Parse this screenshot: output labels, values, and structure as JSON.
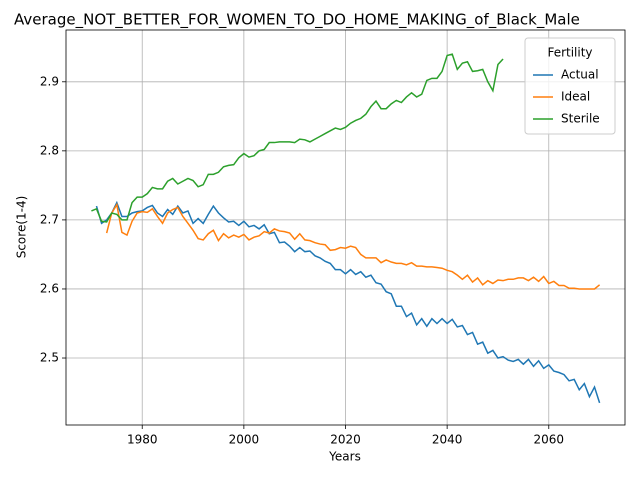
{
  "chart_data": {
    "type": "line",
    "title": "Average_NOT_BETTER_FOR_WOMEN_TO_DO_HOME_MAKING_of_Black_Male",
    "x_label": "Years",
    "y_label": "Score(1-4)",
    "legend_title": "Fertility",
    "legend_position": "upper right",
    "grid": true,
    "xlim": [
      1965,
      2075
    ],
    "ylim": [
      2.403,
      2.975
    ],
    "xticks": [
      1980,
      2000,
      2020,
      2040,
      2060
    ],
    "yticks": [
      2.5,
      2.6,
      2.7,
      2.8,
      2.9
    ],
    "x": [
      1970,
      1971,
      1972,
      1973,
      1974,
      1975,
      1976,
      1977,
      1978,
      1979,
      1980,
      1981,
      1982,
      1983,
      1984,
      1985,
      1986,
      1987,
      1988,
      1989,
      1990,
      1991,
      1992,
      1993,
      1994,
      1995,
      1996,
      1997,
      1998,
      1999,
      2000,
      2001,
      2002,
      2003,
      2004,
      2005,
      2006,
      2007,
      2008,
      2009,
      2010,
      2011,
      2012,
      2013,
      2014,
      2015,
      2016,
      2017,
      2018,
      2019,
      2020,
      2021,
      2022,
      2023,
      2024,
      2025,
      2026,
      2027,
      2028,
      2029,
      2030,
      2031,
      2032,
      2033,
      2034,
      2035,
      2036,
      2037,
      2038,
      2039,
      2040,
      2041,
      2042,
      2043,
      2044,
      2045,
      2046,
      2047,
      2048,
      2049,
      2050,
      2051,
      2052,
      2053,
      2054,
      2055,
      2056,
      2057,
      2058,
      2059,
      2060,
      2061,
      2062,
      2063,
      2064,
      2065,
      2066,
      2067,
      2068,
      2069,
      2070
    ],
    "series": [
      {
        "name": "Actual",
        "color": "#1f77b4",
        "values": [
          null,
          2.72,
          2.695,
          2.7,
          2.71,
          2.725,
          2.705,
          2.705,
          2.71,
          2.712,
          2.713,
          2.718,
          2.721,
          2.71,
          2.705,
          2.715,
          2.708,
          2.72,
          2.71,
          2.713,
          2.695,
          2.702,
          2.695,
          2.708,
          2.72,
          2.71,
          2.703,
          2.697,
          2.698,
          2.692,
          2.698,
          2.69,
          2.692,
          2.687,
          2.693,
          2.68,
          2.682,
          2.667,
          2.668,
          2.662,
          2.654,
          2.66,
          2.654,
          2.655,
          2.648,
          2.645,
          2.64,
          2.637,
          2.628,
          2.628,
          2.622,
          2.628,
          2.621,
          2.625,
          2.617,
          2.62,
          2.609,
          2.607,
          2.596,
          2.593,
          2.575,
          2.575,
          2.56,
          2.565,
          2.548,
          2.557,
          2.546,
          2.557,
          2.55,
          2.557,
          2.55,
          2.556,
          2.545,
          2.547,
          2.534,
          2.537,
          2.52,
          2.523,
          2.507,
          2.511,
          2.5,
          2.502,
          2.497,
          2.495,
          2.498,
          2.491,
          2.498,
          2.488,
          2.496,
          2.485,
          2.49,
          2.481,
          2.479,
          2.476,
          2.467,
          2.469,
          2.454,
          2.463,
          2.444,
          2.458,
          2.435
        ]
      },
      {
        "name": "Ideal",
        "color": "#ff7f0e",
        "values": [
          null,
          null,
          null,
          2.681,
          2.71,
          2.722,
          2.682,
          2.678,
          2.698,
          2.71,
          2.712,
          2.711,
          2.716,
          2.705,
          2.695,
          2.71,
          2.715,
          2.718,
          2.705,
          2.695,
          2.685,
          2.673,
          2.671,
          2.68,
          2.685,
          2.67,
          2.68,
          2.674,
          2.678,
          2.675,
          2.679,
          2.671,
          2.675,
          2.677,
          2.683,
          2.681,
          2.687,
          2.684,
          2.683,
          2.681,
          2.672,
          2.68,
          2.671,
          2.67,
          2.667,
          2.665,
          2.664,
          2.656,
          2.657,
          2.66,
          2.659,
          2.662,
          2.66,
          2.65,
          2.645,
          2.645,
          2.645,
          2.638,
          2.642,
          2.639,
          2.637,
          2.637,
          2.635,
          2.638,
          2.633,
          2.633,
          2.632,
          2.632,
          2.631,
          2.63,
          2.627,
          2.625,
          2.62,
          2.614,
          2.62,
          2.61,
          2.616,
          2.606,
          2.612,
          2.608,
          2.613,
          2.612,
          2.614,
          2.614,
          2.616,
          2.616,
          2.612,
          2.617,
          2.611,
          2.618,
          2.608,
          2.611,
          2.605,
          2.605,
          2.601,
          2.601,
          2.6,
          2.6,
          2.6,
          2.6,
          2.606
        ]
      },
      {
        "name": "Sterile",
        "color": "#2ca02c",
        "values": [
          2.713,
          2.716,
          2.698,
          2.697,
          2.71,
          2.708,
          2.7,
          2.7,
          2.725,
          2.733,
          2.733,
          2.738,
          2.747,
          2.745,
          2.745,
          2.756,
          2.76,
          2.752,
          2.756,
          2.76,
          2.757,
          2.748,
          2.751,
          2.766,
          2.766,
          2.769,
          2.777,
          2.779,
          2.78,
          2.79,
          2.796,
          2.791,
          2.793,
          2.8,
          2.802,
          2.812,
          2.812,
          2.813,
          2.813,
          2.813,
          2.812,
          2.817,
          2.816,
          2.813,
          2.817,
          2.821,
          2.825,
          2.829,
          2.833,
          2.831,
          2.834,
          2.84,
          2.844,
          2.847,
          2.853,
          2.864,
          2.872,
          2.861,
          2.861,
          2.868,
          2.873,
          2.87,
          2.878,
          2.884,
          2.878,
          2.882,
          2.902,
          2.905,
          2.905,
          2.915,
          2.938,
          2.94,
          2.918,
          2.927,
          2.929,
          2.915,
          2.916,
          2.918,
          2.9,
          2.887,
          2.925,
          2.933,
          null,
          null,
          null,
          null,
          null,
          null,
          null,
          null,
          null,
          null,
          null,
          null,
          null,
          null,
          null,
          null,
          null,
          null,
          null
        ]
      }
    ]
  }
}
